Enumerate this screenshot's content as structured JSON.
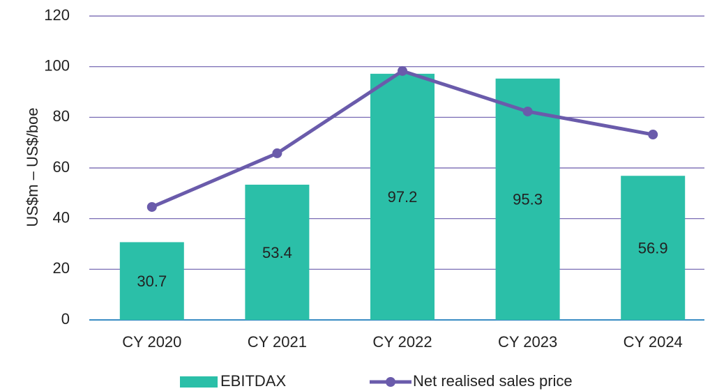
{
  "chart_data": {
    "type": "bar",
    "y_label": "US$m – US$/boe",
    "categories": [
      "CY 2020",
      "CY 2021",
      "CY 2022",
      "CY 2023",
      "CY 2024"
    ],
    "series": [
      {
        "name": "EBITDAX",
        "type": "bar",
        "color": "#2bbfa8",
        "values": [
          30.7,
          53.4,
          97.2,
          95.3,
          56.9
        ]
      },
      {
        "name": "Net realised sales price",
        "type": "line",
        "color": "#6a5bab",
        "values": [
          44.6,
          65.8,
          98.3,
          82.3,
          73.2
        ]
      }
    ],
    "ylim": [
      0,
      120
    ],
    "yticks": [
      0,
      20,
      40,
      60,
      80,
      100,
      120
    ],
    "grid": true,
    "legend": "bottom"
  }
}
